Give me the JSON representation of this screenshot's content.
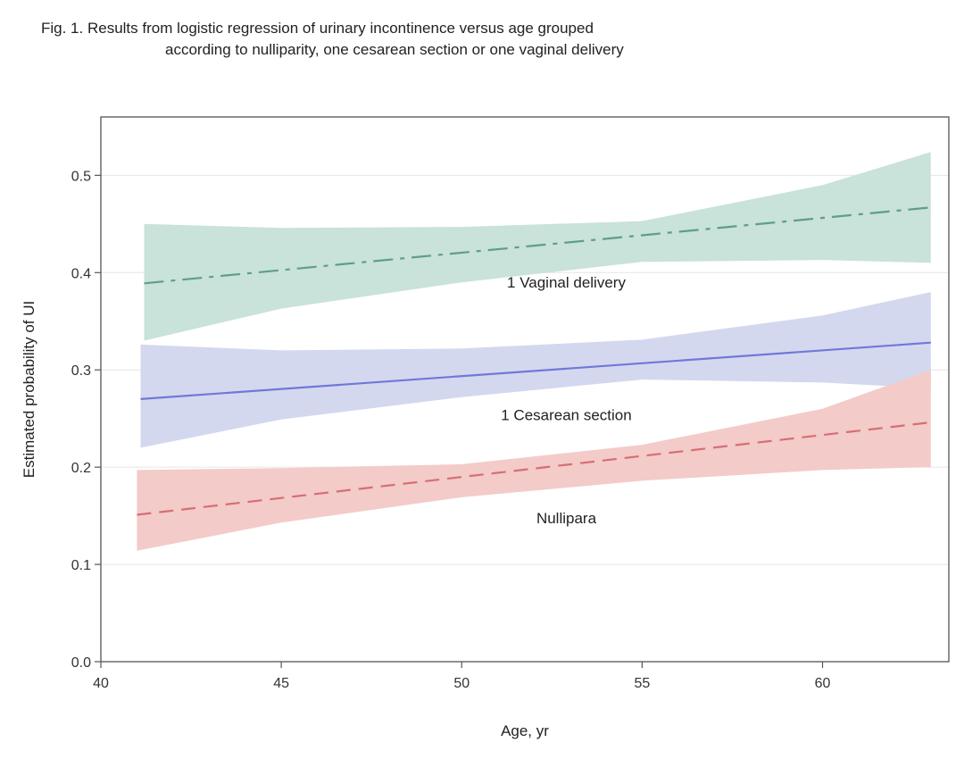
{
  "figure": {
    "title_line_1": "Fig. 1. Results from logistic regression of urinary incontinence versus age grouped",
    "title_line_2": "according to nulliparity, one cesarean section or one vaginal delivery"
  },
  "chart_data": {
    "type": "line",
    "title": "Fig. 1. Results from logistic regression of urinary incontinence versus age grouped according to nulliparity, one cesarean section or one vaginal delivery",
    "xlabel": "Age, yr",
    "ylabel": "Estimated probability of UI",
    "xlim": [
      40,
      63.5
    ],
    "ylim": [
      0,
      0.56
    ],
    "x_ticks": [
      40,
      45,
      50,
      55,
      60
    ],
    "x_tick_labels": [
      "40",
      "45",
      "50",
      "55",
      "60"
    ],
    "y_ticks": [
      0.0,
      0.1,
      0.2,
      0.3,
      0.4,
      0.5
    ],
    "y_tick_labels": [
      "0.0",
      "0.1",
      "0.2",
      "0.3",
      "0.4",
      "0.5"
    ],
    "grid": "horizontal",
    "legend": "none",
    "series": [
      {
        "name": "1 Vaginal delivery",
        "label": "1 Vaginal delivery",
        "label_at": [
          52.9,
          0.39
        ],
        "style": "dashdot",
        "color": "#5e9e8a",
        "band_color": "#c9e2da",
        "x": [
          41.2,
          63
        ],
        "y": [
          0.389,
          0.467
        ],
        "band_x": [
          41.2,
          45,
          50,
          55,
          60,
          63
        ],
        "band_upper": [
          0.45,
          0.446,
          0.447,
          0.453,
          0.49,
          0.524
        ],
        "band_lower": [
          0.33,
          0.363,
          0.39,
          0.411,
          0.413,
          0.41
        ]
      },
      {
        "name": "1 Cesarean section",
        "label": "1 Cesarean section",
        "label_at": [
          52.9,
          0.254
        ],
        "style": "solid",
        "color": "#7078d8",
        "band_color": "#d3d8ef",
        "x": [
          41.1,
          63
        ],
        "y": [
          0.27,
          0.328
        ],
        "band_x": [
          41.1,
          45,
          50,
          55,
          60,
          63
        ],
        "band_upper": [
          0.326,
          0.32,
          0.322,
          0.331,
          0.356,
          0.38
        ],
        "band_lower": [
          0.22,
          0.249,
          0.272,
          0.29,
          0.287,
          0.281
        ]
      },
      {
        "name": "Nullipara",
        "label": "Nullipara",
        "label_at": [
          52.9,
          0.148
        ],
        "style": "dashed",
        "color": "#d76e75",
        "band_color": "#f3cbc8",
        "x": [
          41,
          63
        ],
        "y": [
          0.151,
          0.246
        ],
        "band_x": [
          41,
          45,
          50,
          55,
          60,
          63
        ],
        "band_upper": [
          0.197,
          0.199,
          0.203,
          0.223,
          0.26,
          0.3
        ],
        "band_lower": [
          0.114,
          0.143,
          0.169,
          0.186,
          0.197,
          0.2
        ]
      }
    ]
  }
}
